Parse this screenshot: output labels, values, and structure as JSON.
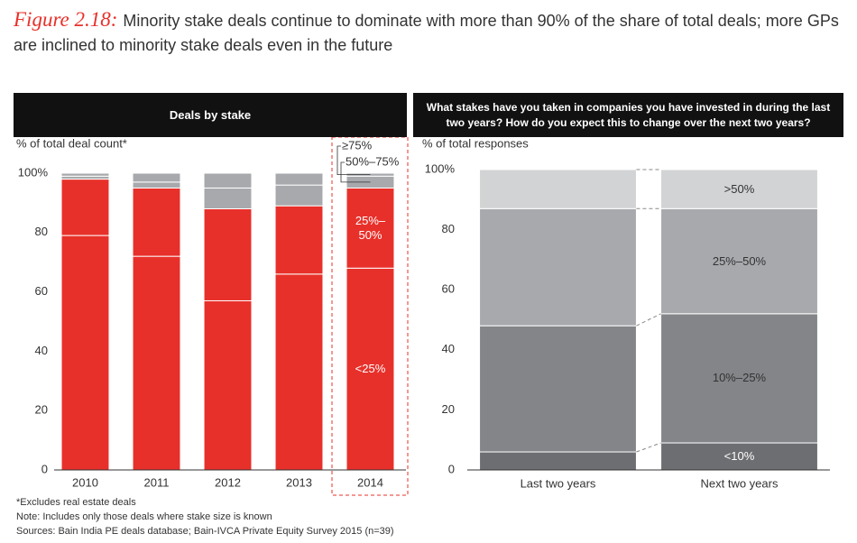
{
  "figure_label": "Figure 2.18:",
  "title": "Minority stake deals continue to dominate with more than 90% of the share of total deals; more GPs are inclined to minority stake deals even in the future",
  "notes": [
    "*Excludes real estate deals",
    "Note: Includes only those deals where stake size is known",
    "Sources: Bain India PE deals database; Bain-IVCA Private Equity Survey 2015 (n=39)"
  ],
  "chart_data": [
    {
      "type": "bar",
      "stacked": true,
      "title": "Deals by stake",
      "ylabel": "% of total deal count*",
      "categories": [
        "2010",
        "2011",
        "2012",
        "2013",
        "2014"
      ],
      "series": [
        {
          "name": "<25%",
          "color": "#e8302a",
          "values": [
            79,
            72,
            57,
            66,
            68
          ]
        },
        {
          "name": "25%–50%",
          "color": "#e8302a",
          "values": [
            19,
            23,
            31,
            23,
            27
          ]
        },
        {
          "name": "50%–75%",
          "color": "#a7a9ac",
          "values": [
            1,
            2,
            7,
            7,
            4
          ]
        },
        {
          "name": "≥75%",
          "color": "#a7a9ac",
          "values": [
            1,
            3,
            5,
            4,
            1
          ]
        }
      ],
      "ylim": [
        0,
        100
      ],
      "yticks": [
        0,
        20,
        40,
        60,
        80,
        {
          "value": 100,
          "label": "100%"
        }
      ]
    },
    {
      "type": "bar",
      "stacked": true,
      "title": "What stakes have you taken in companies you have invested in during the last two years? How do you expect this to change over the next two years?",
      "ylabel": "% of total responses",
      "categories": [
        "Last two years",
        "Next two years"
      ],
      "series": [
        {
          "name": "<10%",
          "color": "#6d6e71",
          "values": [
            6,
            9
          ]
        },
        {
          "name": "10%–25%",
          "color": "#838588",
          "values": [
            42,
            43
          ]
        },
        {
          "name": "25%–50%",
          "color": "#a7a9ac",
          "values": [
            39,
            35
          ]
        },
        {
          "name": ">50%",
          "color": "#d1d3d4",
          "values": [
            13,
            13
          ]
        }
      ],
      "ylim": [
        0,
        100
      ],
      "yticks": [
        0,
        20,
        40,
        60,
        80,
        {
          "value": 100,
          "label": "100%"
        }
      ]
    }
  ]
}
